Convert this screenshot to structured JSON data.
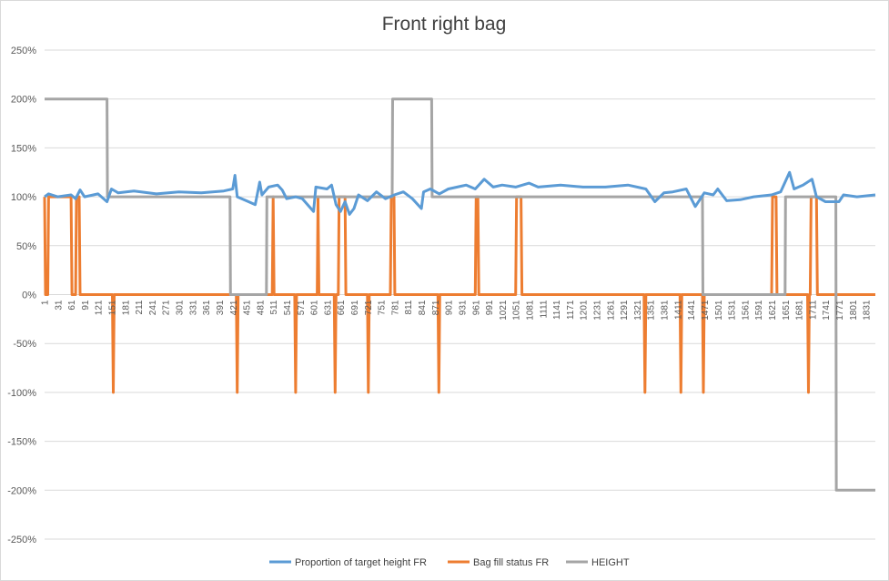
{
  "chart_data": {
    "type": "line",
    "title": "Front right bag",
    "xlabel": "",
    "ylabel": "",
    "grid": "horizontal",
    "legend_position": "bottom",
    "ylim": [
      -2.5,
      2.5
    ],
    "y_ticks": [
      2.5,
      2.0,
      1.5,
      1.0,
      0.5,
      0.0,
      -0.5,
      -1.0,
      -1.5,
      -2.0,
      -2.5
    ],
    "y_tick_labels": [
      "250%",
      "200%",
      "150%",
      "100%",
      "50%",
      "0%",
      "-50%",
      "-100%",
      "-150%",
      "-200%",
      "-250%"
    ],
    "x_range": [
      1,
      1851
    ],
    "x_ticks": [
      1,
      31,
      61,
      91,
      121,
      151,
      181,
      211,
      241,
      271,
      301,
      331,
      361,
      391,
      421,
      451,
      481,
      511,
      541,
      571,
      601,
      631,
      661,
      691,
      721,
      751,
      781,
      811,
      841,
      871,
      901,
      931,
      961,
      991,
      1021,
      1051,
      1081,
      1111,
      1141,
      1171,
      1201,
      1231,
      1261,
      1291,
      1321,
      1351,
      1381,
      1411,
      1441,
      1471,
      1501,
      1531,
      1561,
      1591,
      1621,
      1651,
      1681,
      1711,
      1741,
      1771,
      1801,
      1831
    ],
    "series": [
      {
        "name": "Proportion of target height FR",
        "color": "#5B9BD5",
        "points": [
          [
            1,
            1.0
          ],
          [
            10,
            1.03
          ],
          [
            30,
            1.0
          ],
          [
            60,
            1.02
          ],
          [
            70,
            0.98
          ],
          [
            80,
            1.07
          ],
          [
            90,
            1.0
          ],
          [
            120,
            1.03
          ],
          [
            140,
            0.95
          ],
          [
            150,
            1.08
          ],
          [
            165,
            1.04
          ],
          [
            200,
            1.06
          ],
          [
            250,
            1.03
          ],
          [
            300,
            1.05
          ],
          [
            350,
            1.04
          ],
          [
            400,
            1.06
          ],
          [
            420,
            1.08
          ],
          [
            425,
            1.22
          ],
          [
            430,
            1.0
          ],
          [
            450,
            0.96
          ],
          [
            470,
            0.92
          ],
          [
            480,
            1.15
          ],
          [
            485,
            1.02
          ],
          [
            500,
            1.1
          ],
          [
            520,
            1.12
          ],
          [
            530,
            1.07
          ],
          [
            540,
            0.98
          ],
          [
            560,
            1.0
          ],
          [
            575,
            0.98
          ],
          [
            600,
            0.85
          ],
          [
            605,
            1.1
          ],
          [
            630,
            1.08
          ],
          [
            640,
            1.12
          ],
          [
            650,
            0.92
          ],
          [
            660,
            0.85
          ],
          [
            670,
            0.95
          ],
          [
            680,
            0.82
          ],
          [
            690,
            0.88
          ],
          [
            700,
            1.02
          ],
          [
            720,
            0.96
          ],
          [
            740,
            1.05
          ],
          [
            760,
            0.98
          ],
          [
            780,
            1.02
          ],
          [
            800,
            1.05
          ],
          [
            820,
            0.98
          ],
          [
            840,
            0.88
          ],
          [
            845,
            1.05
          ],
          [
            860,
            1.08
          ],
          [
            880,
            1.03
          ],
          [
            900,
            1.08
          ],
          [
            920,
            1.1
          ],
          [
            940,
            1.12
          ],
          [
            960,
            1.08
          ],
          [
            980,
            1.18
          ],
          [
            1000,
            1.1
          ],
          [
            1020,
            1.12
          ],
          [
            1050,
            1.1
          ],
          [
            1080,
            1.14
          ],
          [
            1100,
            1.1
          ],
          [
            1150,
            1.12
          ],
          [
            1200,
            1.1
          ],
          [
            1250,
            1.1
          ],
          [
            1300,
            1.12
          ],
          [
            1340,
            1.08
          ],
          [
            1360,
            0.95
          ],
          [
            1380,
            1.04
          ],
          [
            1400,
            1.05
          ],
          [
            1430,
            1.08
          ],
          [
            1450,
            0.9
          ],
          [
            1470,
            1.04
          ],
          [
            1490,
            1.02
          ],
          [
            1500,
            1.08
          ],
          [
            1520,
            0.96
          ],
          [
            1550,
            0.97
          ],
          [
            1580,
            1.0
          ],
          [
            1620,
            1.02
          ],
          [
            1640,
            1.05
          ],
          [
            1660,
            1.25
          ],
          [
            1670,
            1.08
          ],
          [
            1690,
            1.12
          ],
          [
            1710,
            1.18
          ],
          [
            1720,
            1.0
          ],
          [
            1740,
            0.95
          ],
          [
            1770,
            0.95
          ],
          [
            1780,
            1.02
          ],
          [
            1810,
            1.0
          ],
          [
            1851,
            1.02
          ]
        ]
      },
      {
        "name": "Bag fill status FR",
        "color": "#ED7D31",
        "points": [
          [
            1,
            1.0
          ],
          [
            3,
            0.0
          ],
          [
            8,
            0.0
          ],
          [
            10,
            1.0
          ],
          [
            60,
            1.0
          ],
          [
            62,
            0.0
          ],
          [
            70,
            0.0
          ],
          [
            72,
            1.0
          ],
          [
            78,
            1.0
          ],
          [
            80,
            0.0
          ],
          [
            152,
            0.0
          ],
          [
            154,
            -1.0
          ],
          [
            156,
            0.0
          ],
          [
            428,
            0.0
          ],
          [
            430,
            -1.0
          ],
          [
            432,
            0.0
          ],
          [
            508,
            0.0
          ],
          [
            510,
            1.0
          ],
          [
            512,
            0.0
          ],
          [
            558,
            0.0
          ],
          [
            560,
            -1.0
          ],
          [
            562,
            0.0
          ],
          [
            608,
            0.0
          ],
          [
            610,
            1.0
          ],
          [
            612,
            0.0
          ],
          [
            646,
            0.0
          ],
          [
            648,
            -1.0
          ],
          [
            650,
            0.0
          ],
          [
            655,
            0.0
          ],
          [
            657,
            1.0
          ],
          [
            670,
            1.0
          ],
          [
            672,
            0.0
          ],
          [
            720,
            0.0
          ],
          [
            722,
            -1.0
          ],
          [
            724,
            0.0
          ],
          [
            771,
            0.0
          ],
          [
            773,
            1.0
          ],
          [
            779,
            1.0
          ],
          [
            781,
            0.0
          ],
          [
            877,
            0.0
          ],
          [
            879,
            -1.0
          ],
          [
            881,
            0.0
          ],
          [
            960,
            0.0
          ],
          [
            962,
            1.0
          ],
          [
            966,
            1.0
          ],
          [
            968,
            0.0
          ],
          [
            1050,
            0.0
          ],
          [
            1052,
            1.0
          ],
          [
            1062,
            1.0
          ],
          [
            1064,
            0.0
          ],
          [
            1336,
            0.0
          ],
          [
            1338,
            -1.0
          ],
          [
            1340,
            0.0
          ],
          [
            1416,
            0.0
          ],
          [
            1418,
            -1.0
          ],
          [
            1420,
            0.0
          ],
          [
            1466,
            0.0
          ],
          [
            1468,
            -1.0
          ],
          [
            1470,
            0.0
          ],
          [
            1620,
            0.0
          ],
          [
            1622,
            1.0
          ],
          [
            1630,
            1.0
          ],
          [
            1632,
            0.0
          ],
          [
            1700,
            0.0
          ],
          [
            1702,
            -1.0
          ],
          [
            1704,
            0.0
          ],
          [
            1706,
            0.0
          ],
          [
            1708,
            1.0
          ],
          [
            1720,
            1.0
          ],
          [
            1722,
            0.0
          ],
          [
            1851,
            0.0
          ]
        ]
      },
      {
        "name": "HEIGHT",
        "color": "#A5A5A5",
        "points": [
          [
            1,
            2.0
          ],
          [
            140,
            2.0
          ],
          [
            141,
            1.0
          ],
          [
            414,
            1.0
          ],
          [
            415,
            0.0
          ],
          [
            495,
            0.0
          ],
          [
            496,
            1.0
          ],
          [
            775,
            1.0
          ],
          [
            776,
            2.0
          ],
          [
            863,
            2.0
          ],
          [
            864,
            1.0
          ],
          [
            1466,
            1.0
          ],
          [
            1467,
            0.0
          ],
          [
            1650,
            0.0
          ],
          [
            1651,
            1.0
          ],
          [
            1763,
            1.0
          ],
          [
            1764,
            -2.0
          ],
          [
            1851,
            -2.0
          ]
        ]
      }
    ]
  }
}
